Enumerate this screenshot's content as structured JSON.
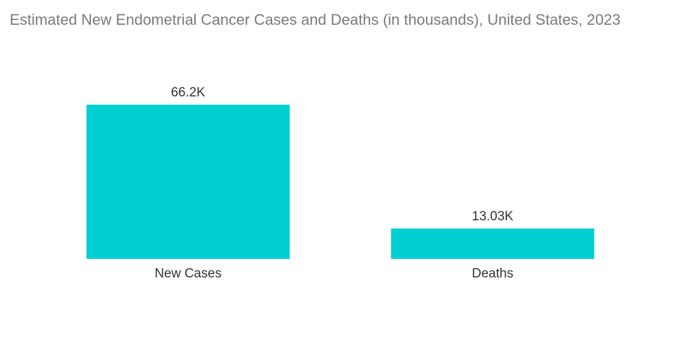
{
  "chart_data": {
    "type": "bar",
    "title": "Estimated New Endometrial Cancer Cases and Deaths (in thousands), United States, 2023",
    "categories": [
      "New Cases",
      "Deaths"
    ],
    "values": [
      66.2,
      13.03
    ],
    "data_labels": [
      "66.2K",
      "13.03K"
    ],
    "xlabel": "",
    "ylabel": "",
    "ylim": [
      0,
      66.2
    ],
    "grid": false,
    "legend": "none",
    "bar_color": "#00cfd1"
  }
}
